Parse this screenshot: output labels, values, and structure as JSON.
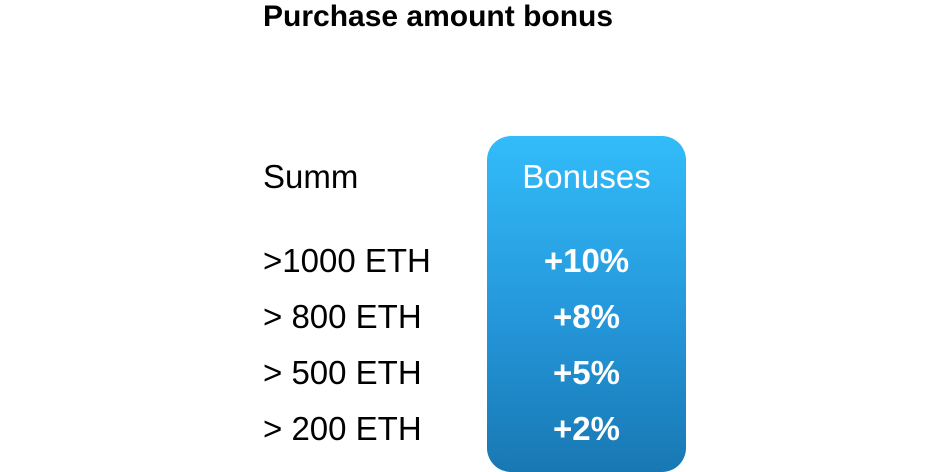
{
  "title": "Purchase amount bonus",
  "table": {
    "summ_header": "Summ",
    "bonus_header": "Bonuses",
    "rows": [
      {
        "summ": ">1000 ETH",
        "bonus": "+10%"
      },
      {
        "summ": "> 800 ETH",
        "bonus": "+8%"
      },
      {
        "summ": "> 500 ETH",
        "bonus": "+5%"
      },
      {
        "summ": "> 200 ETH",
        "bonus": "+2%"
      }
    ]
  },
  "colors": {
    "panel_top": "#33bcfa",
    "panel_bottom": "#1878b3",
    "panel_text": "#ffffff"
  }
}
